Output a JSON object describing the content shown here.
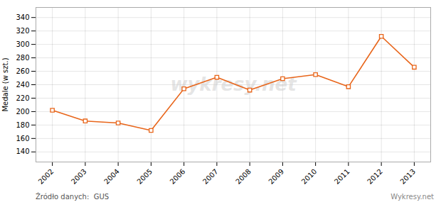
{
  "chart_data": {
    "type": "line",
    "x": [
      2002,
      2003,
      2004,
      2005,
      2006,
      2007,
      2008,
      2009,
      2010,
      2011,
      2012,
      2013
    ],
    "values": [
      202,
      186,
      183,
      172,
      234,
      251,
      232,
      249,
      255,
      237,
      312,
      266
    ],
    "color": "#E8651A",
    "marker": "square",
    "ylabel": "Medale (w szt.)",
    "xlim": [
      2001.5,
      2013.5
    ],
    "xticks": [
      2002,
      2003,
      2004,
      2005,
      2006,
      2007,
      2008,
      2009,
      2010,
      2011,
      2012,
      2013
    ],
    "ylim": [
      125,
      355
    ],
    "yticks": [
      140,
      160,
      180,
      200,
      220,
      240,
      260,
      280,
      300,
      320,
      340
    ],
    "grid": true,
    "watermark": "wykresy.net",
    "source": "Źródło danych:  GUS",
    "credit": "Wykresy.net"
  }
}
